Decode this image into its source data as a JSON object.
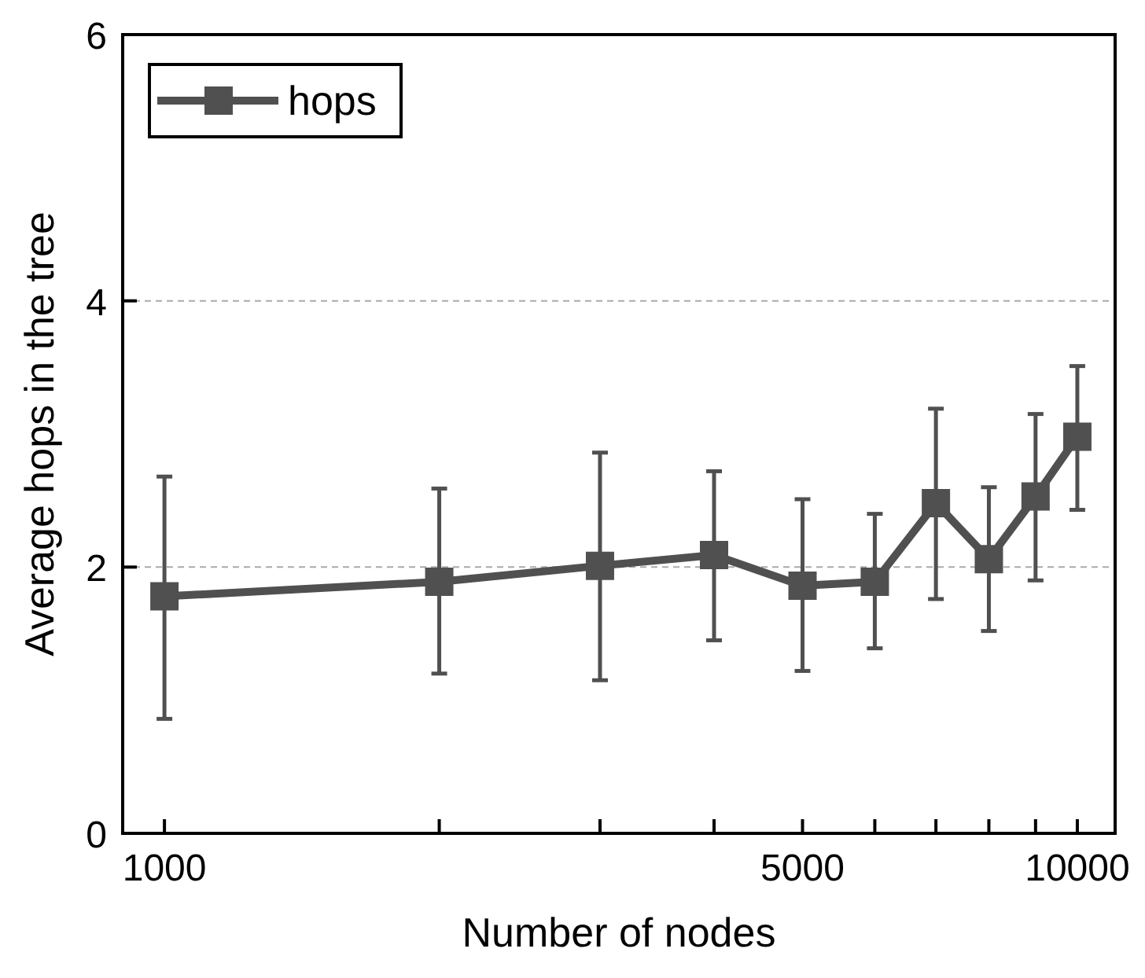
{
  "chart_data": {
    "type": "line",
    "xlabel": "Number of nodes",
    "ylabel": "Average hops in the tree",
    "log": "x",
    "x": [
      1000,
      2000,
      3000,
      4000,
      5000,
      6000,
      7000,
      8000,
      9000,
      10000
    ],
    "series": [
      {
        "name": "hops",
        "color": "#505050",
        "values": [
          1.78,
          1.89,
          2.01,
          2.09,
          1.86,
          1.89,
          2.48,
          2.06,
          2.53,
          2.98
        ],
        "errors": [
          [
            0.86,
            2.68
          ],
          [
            1.2,
            2.59
          ],
          [
            1.15,
            2.86
          ],
          [
            1.45,
            2.72
          ],
          [
            1.22,
            2.51
          ],
          [
            1.39,
            2.4
          ],
          [
            1.76,
            3.19
          ],
          [
            1.52,
            2.6
          ],
          [
            1.9,
            3.15
          ],
          [
            2.43,
            3.51
          ]
        ]
      }
    ],
    "xlim": [
      900,
      11000
    ],
    "xticks": [
      1000,
      {
        "value": 2000,
        "label": null
      },
      {
        "value": 3000,
        "label": null
      },
      {
        "value": 4000,
        "label": null
      },
      5000,
      {
        "value": 6000,
        "label": null
      },
      {
        "value": 7000,
        "label": null
      },
      {
        "value": 8000,
        "label": null
      },
      {
        "value": 9000,
        "label": null
      },
      10000
    ],
    "ylim": [
      0,
      6
    ],
    "yticks": [
      0,
      2,
      4,
      6
    ],
    "grid": "y",
    "legend": "top left",
    "marker": "square",
    "line_style": "solid"
  }
}
